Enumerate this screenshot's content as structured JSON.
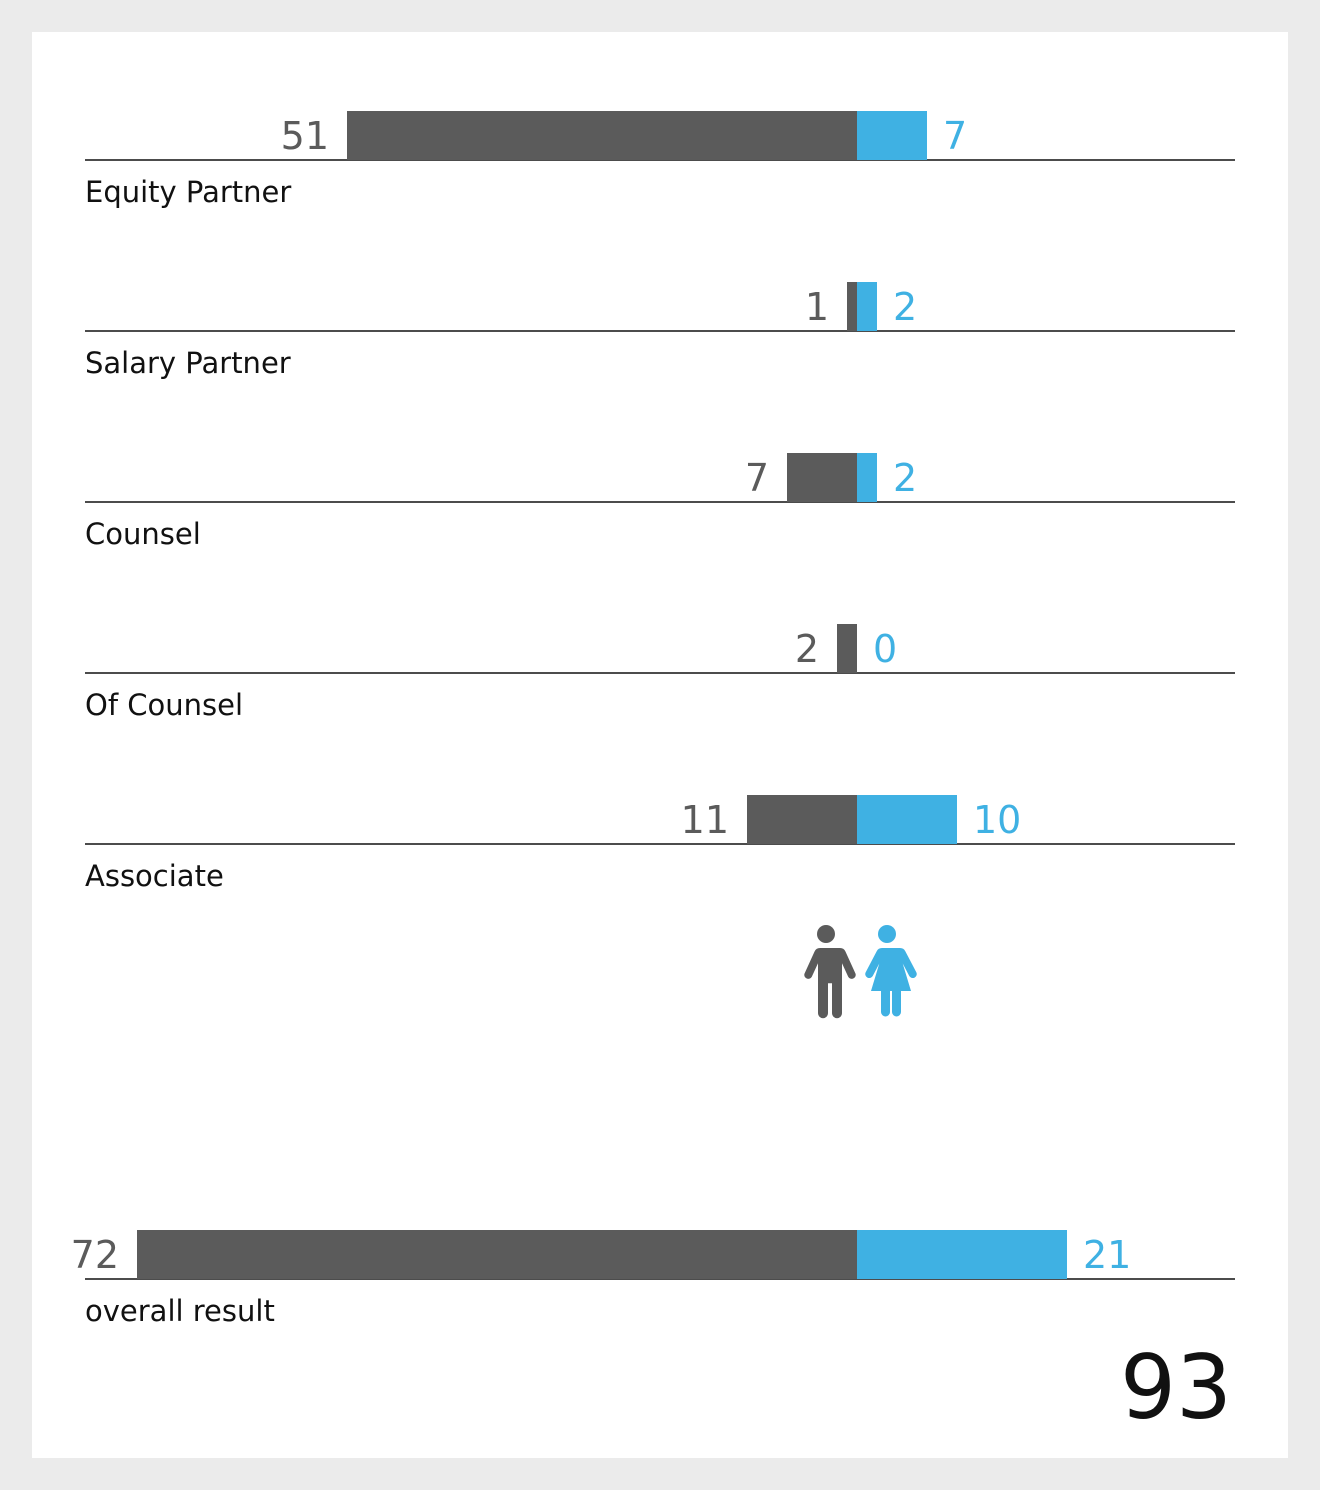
{
  "chart_data": {
    "type": "bar",
    "categories": [
      "Equity Partner",
      "Salary Partner",
      "Counsel",
      "Of Counsel",
      "Associate"
    ],
    "series": [
      {
        "values": [
          51,
          1,
          7,
          2,
          11
        ],
        "color": "#5b5b5b"
      },
      {
        "values": [
          7,
          2,
          2,
          0,
          10
        ],
        "color": "#3fb1e3"
      }
    ],
    "overall": {
      "label": "overall result",
      "values": [
        72,
        21
      ]
    },
    "total": "93",
    "icons": [
      "man-icon",
      "woman-icon"
    ],
    "colors": {
      "series_a": "#5b5b5b",
      "series_b": "#3fb1e3",
      "text": "#111111",
      "axis": "#111111",
      "background": "#ffffff",
      "page": "#ebebeb"
    }
  }
}
